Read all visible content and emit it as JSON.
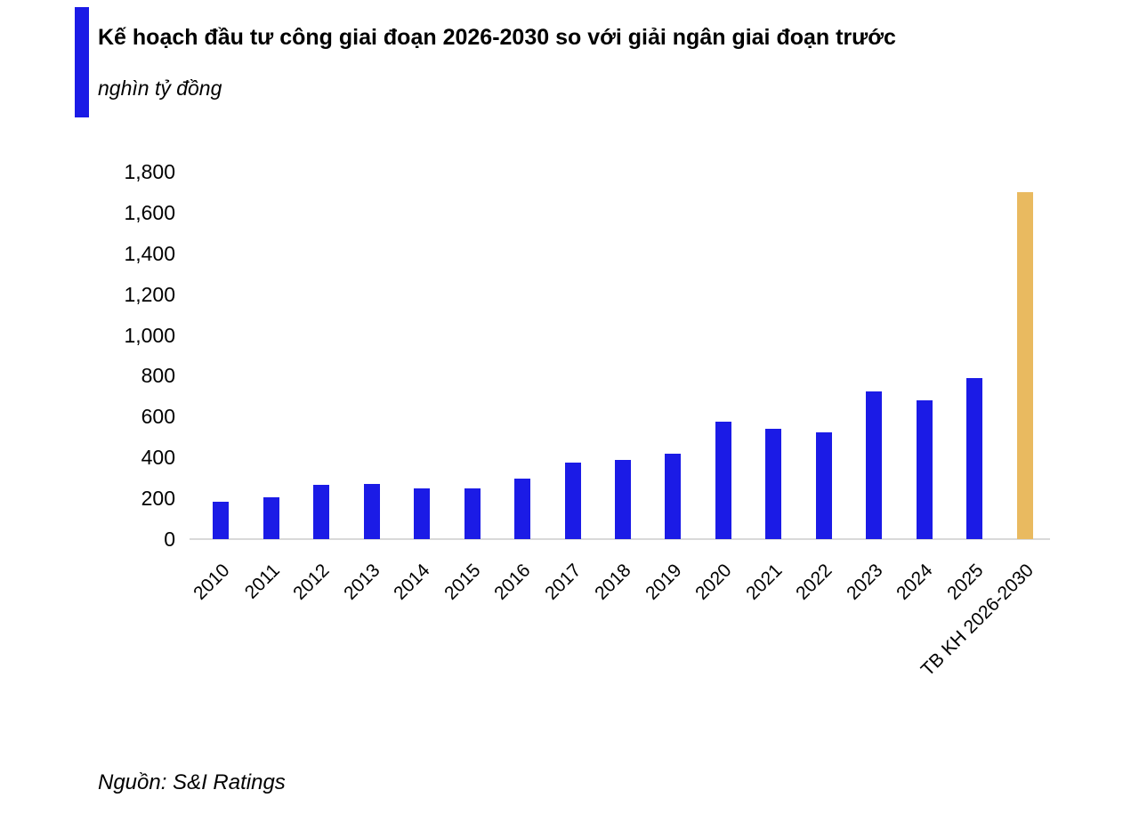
{
  "header": {
    "title": "Kế hoạch đầu tư công giai đoạn 2026-2030 so với giải ngân giai đoạn trước",
    "subtitle_unit": "nghìn tỷ đồng"
  },
  "footer": {
    "source": "Nguồn: S&I Ratings"
  },
  "colors": {
    "accent": "#1b1be6",
    "bar_default": "#1b1be6",
    "bar_highlight": "#e9ba60",
    "axis_line": "#d9d9d9",
    "text": "#000000"
  },
  "chart_data": {
    "type": "bar",
    "title": "Kế hoạch đầu tư công giai đoạn 2026-2030 so với giải ngân giai đoạn trước",
    "unit_label": "nghìn tỷ đồng",
    "categories": [
      "2010",
      "2011",
      "2012",
      "2013",
      "2014",
      "2015",
      "2016",
      "2017",
      "2018",
      "2019",
      "2020",
      "2021",
      "2022",
      "2023",
      "2024",
      "2025",
      "TB KH 2026-2030"
    ],
    "values": [
      185,
      205,
      265,
      270,
      250,
      250,
      295,
      375,
      390,
      420,
      575,
      540,
      525,
      725,
      680,
      790,
      1700
    ],
    "highlight_category": "TB KH 2026-2030",
    "highlight_index": 16,
    "xlabel": "",
    "ylabel": "nghìn tỷ đồng",
    "ylim": [
      0,
      1800
    ],
    "y_ticks": [
      0,
      200,
      400,
      600,
      800,
      1000,
      1200,
      1400,
      1600,
      1800
    ],
    "x_tick_rotation": -45,
    "grid": false,
    "legend": false
  }
}
